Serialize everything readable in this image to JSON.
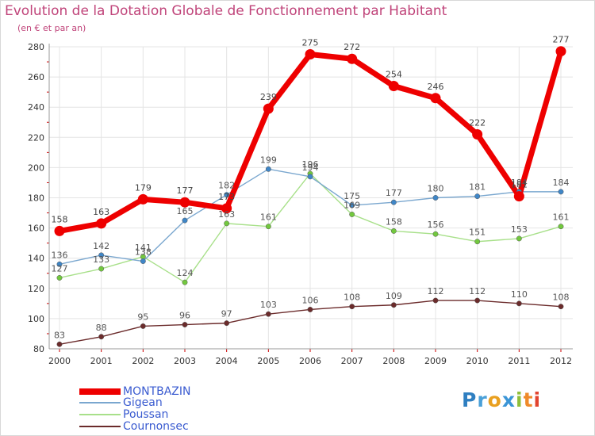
{
  "title": "Evolution de la Dotation Globale de Fonctionnement par Habitant",
  "subtitle": "(en € et par an)",
  "logo": {
    "letters": [
      "P",
      "r",
      "o",
      "x",
      "i",
      "t",
      "i"
    ],
    "colors": [
      "#2f7fc1",
      "#4aa0d8",
      "#e9a020",
      "#3b95d6",
      "#8fbf3a",
      "#ef8a2a",
      "#e2442f"
    ]
  },
  "chart_data": {
    "type": "line",
    "title": "Evolution de la Dotation Globale de Fonctionnement par Habitant",
    "ylabel": "(en € et par an)",
    "xlabel": "",
    "x": [
      "2000",
      "2001",
      "2002",
      "2003",
      "2004",
      "2005",
      "2006",
      "2007",
      "2008",
      "2009",
      "2010",
      "2011",
      "2012"
    ],
    "ylim": [
      80,
      280
    ],
    "yticks": [
      "80",
      "100",
      "120",
      "140",
      "160",
      "180",
      "200",
      "220",
      "240",
      "260",
      "280"
    ],
    "series": [
      {
        "name": "MONTBAZIN",
        "color": "#ee0000",
        "marker": "#ee0000",
        "label_color": "#444444",
        "values": [
          158,
          163,
          179,
          177,
          173,
          239,
          275,
          272,
          254,
          246,
          222,
          181,
          277
        ],
        "labels": [
          "158",
          "163",
          "179",
          "177",
          "173",
          "239",
          "275",
          "272",
          "254",
          "246",
          "222",
          "181",
          "277"
        ]
      },
      {
        "name": "Gigean",
        "color": "#7aa7cf",
        "marker": "#3f86c7",
        "label_color": "#555555",
        "values": [
          136,
          142,
          138,
          165,
          182,
          199,
          194,
          175,
          177,
          180,
          181,
          184,
          184
        ],
        "labels": [
          "136",
          "142",
          "138",
          "165",
          "182",
          "199",
          "194",
          "175",
          "177",
          "180",
          "181",
          "184",
          "184"
        ]
      },
      {
        "name": "Poussan",
        "color": "#a8e08a",
        "marker": "#72c83e",
        "label_color": "#555555",
        "values": [
          127,
          133,
          141,
          124,
          163,
          161,
          196,
          169,
          158,
          156,
          151,
          153,
          161
        ],
        "labels": [
          "127",
          "133",
          "141",
          "124",
          "163",
          "161",
          "196",
          "169",
          "158",
          "156",
          "151",
          "153",
          "161"
        ]
      },
      {
        "name": "Cournonsec",
        "color": "#6b2b2b",
        "marker": "#6b2b2b",
        "label_color": "#555555",
        "values": [
          83,
          88,
          95,
          96,
          97,
          103,
          106,
          108,
          109,
          112,
          112,
          110,
          108
        ],
        "labels": [
          "83",
          "88",
          "95",
          "96",
          "97",
          "103",
          "106",
          "108",
          "109",
          "112",
          "112",
          "110",
          "108"
        ]
      }
    ],
    "legend_position": "bottom-left"
  }
}
